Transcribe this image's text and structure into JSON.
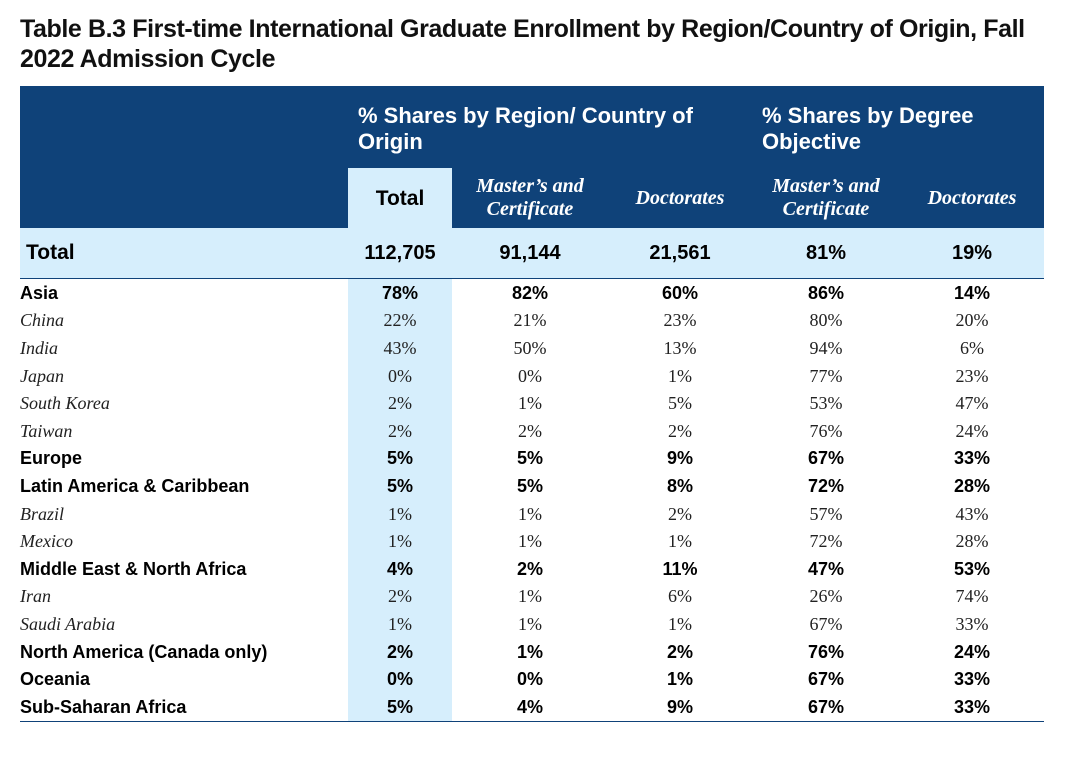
{
  "title": "Table B.3 First-time International Graduate Enrollment by Region/Country of Origin, Fall 2022 Admission Cycle",
  "header": {
    "group1": "% Shares by Region/ Country of Origin",
    "group2": "% Shares by Degree Objective",
    "col_total": "Total",
    "col_masters": "Master’s and Certificate",
    "col_doctorates": "Doctorates",
    "col_masters2": "Master’s and Certificate",
    "col_doctorates2": "Doctorates"
  },
  "total_row": {
    "label": "Total",
    "total": "112,705",
    "masters": "91,144",
    "doctorates": "21,561",
    "masters_pct": "81%",
    "doctorates_pct": "19%"
  },
  "rows": [
    {
      "label": "Asia",
      "type": "region",
      "total": "78%",
      "masters": "82%",
      "doctorates": "60%",
      "masters_pct": "86%",
      "doctorates_pct": "14%"
    },
    {
      "label": "China",
      "type": "country",
      "total": "22%",
      "masters": "21%",
      "doctorates": "23%",
      "masters_pct": "80%",
      "doctorates_pct": "20%"
    },
    {
      "label": "India",
      "type": "country",
      "total": "43%",
      "masters": "50%",
      "doctorates": "13%",
      "masters_pct": "94%",
      "doctorates_pct": "6%"
    },
    {
      "label": "Japan",
      "type": "country",
      "total": "0%",
      "masters": "0%",
      "doctorates": "1%",
      "masters_pct": "77%",
      "doctorates_pct": "23%"
    },
    {
      "label": "South Korea",
      "type": "country",
      "total": "2%",
      "masters": "1%",
      "doctorates": "5%",
      "masters_pct": "53%",
      "doctorates_pct": "47%"
    },
    {
      "label": "Taiwan",
      "type": "country",
      "total": "2%",
      "masters": "2%",
      "doctorates": "2%",
      "masters_pct": "76%",
      "doctorates_pct": "24%"
    },
    {
      "label": "Europe",
      "type": "region",
      "total": "5%",
      "masters": "5%",
      "doctorates": "9%",
      "masters_pct": "67%",
      "doctorates_pct": "33%"
    },
    {
      "label": "Latin America & Caribbean",
      "type": "region",
      "total": "5%",
      "masters": "5%",
      "doctorates": "8%",
      "masters_pct": "72%",
      "doctorates_pct": "28%"
    },
    {
      "label": "Brazil",
      "type": "country",
      "total": "1%",
      "masters": "1%",
      "doctorates": "2%",
      "masters_pct": "57%",
      "doctorates_pct": "43%"
    },
    {
      "label": "Mexico",
      "type": "country",
      "total": "1%",
      "masters": "1%",
      "doctorates": "1%",
      "masters_pct": "72%",
      "doctorates_pct": "28%"
    },
    {
      "label": "Middle East & North Africa",
      "type": "region",
      "total": "4%",
      "masters": "2%",
      "doctorates": "11%",
      "masters_pct": "47%",
      "doctorates_pct": "53%"
    },
    {
      "label": "Iran",
      "type": "country",
      "total": "2%",
      "masters": "1%",
      "doctorates": "6%",
      "masters_pct": "26%",
      "doctorates_pct": "74%"
    },
    {
      "label": "Saudi Arabia",
      "type": "country",
      "total": "1%",
      "masters": "1%",
      "doctorates": "1%",
      "masters_pct": "67%",
      "doctorates_pct": "33%"
    },
    {
      "label": "North America (Canada only)",
      "type": "region",
      "total": "2%",
      "masters": "1%",
      "doctorates": "2%",
      "masters_pct": "76%",
      "doctorates_pct": "24%"
    },
    {
      "label": "Oceania",
      "type": "region",
      "total": "0%",
      "masters": "0%",
      "doctorates": "1%",
      "masters_pct": "67%",
      "doctorates_pct": "33%"
    },
    {
      "label": "Sub-Saharan Africa",
      "type": "region",
      "total": "5%",
      "masters": "4%",
      "doctorates": "9%",
      "masters_pct": "67%",
      "doctorates_pct": "33%"
    }
  ],
  "colors": {
    "header_bg": "#0f4279",
    "total_col_bg": "#d6eefc"
  }
}
